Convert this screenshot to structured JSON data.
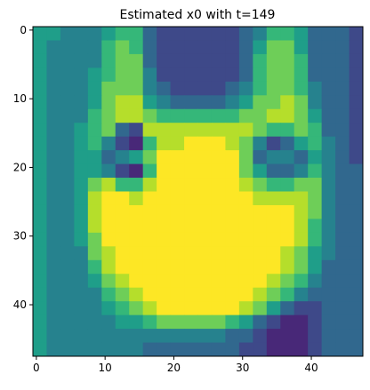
{
  "chart_data": {
    "type": "heatmap",
    "title": "Estimated x0 with t=149",
    "values": [
      [
        5,
        5,
        4,
        4,
        4,
        5,
        6,
        6,
        3,
        2,
        2,
        2,
        2,
        2,
        2,
        3,
        4,
        6,
        6,
        5,
        3,
        3,
        3,
        2
      ],
      [
        5,
        4,
        4,
        4,
        4,
        6,
        7,
        6,
        3,
        2,
        2,
        2,
        2,
        2,
        2,
        3,
        5,
        7,
        7,
        5,
        3,
        3,
        3,
        2
      ],
      [
        5,
        4,
        4,
        4,
        4,
        6,
        7,
        7,
        3,
        2,
        2,
        2,
        2,
        2,
        2,
        3,
        6,
        7,
        7,
        6,
        3,
        3,
        3,
        2
      ],
      [
        5,
        4,
        4,
        4,
        5,
        6,
        7,
        7,
        4,
        2,
        2,
        2,
        2,
        2,
        2,
        3,
        6,
        7,
        7,
        6,
        3,
        3,
        3,
        2
      ],
      [
        5,
        4,
        4,
        4,
        5,
        7,
        7,
        7,
        4,
        3,
        2,
        2,
        2,
        2,
        3,
        4,
        6,
        7,
        7,
        6,
        4,
        3,
        3,
        2
      ],
      [
        5,
        4,
        4,
        4,
        5,
        7,
        8,
        8,
        5,
        4,
        3,
        3,
        3,
        3,
        4,
        5,
        7,
        7,
        8,
        7,
        4,
        3,
        3,
        2
      ],
      [
        5,
        4,
        4,
        4,
        6,
        7,
        8,
        8,
        7,
        6,
        6,
        6,
        6,
        6,
        6,
        7,
        7,
        8,
        8,
        7,
        5,
        3,
        3,
        2
      ],
      [
        5,
        4,
        4,
        5,
        6,
        7,
        3,
        2,
        8,
        8,
        8,
        8,
        8,
        8,
        8,
        8,
        7,
        6,
        6,
        7,
        6,
        3,
        3,
        2
      ],
      [
        5,
        4,
        4,
        5,
        6,
        4,
        2,
        1,
        6,
        8,
        8,
        9,
        9,
        9,
        8,
        7,
        4,
        2,
        3,
        5,
        6,
        4,
        3,
        2
      ],
      [
        5,
        4,
        4,
        5,
        5,
        3,
        4,
        5,
        7,
        9,
        9,
        9,
        9,
        9,
        9,
        7,
        3,
        4,
        4,
        3,
        5,
        4,
        3,
        2
      ],
      [
        5,
        4,
        4,
        5,
        5,
        4,
        2,
        1,
        6,
        9,
        9,
        9,
        9,
        9,
        9,
        7,
        5,
        3,
        3,
        4,
        6,
        4,
        3,
        3
      ],
      [
        5,
        4,
        4,
        5,
        7,
        8,
        6,
        6,
        8,
        9,
        9,
        9,
        9,
        9,
        9,
        8,
        7,
        6,
        6,
        7,
        7,
        4,
        3,
        3
      ],
      [
        5,
        4,
        4,
        5,
        8,
        9,
        9,
        8,
        9,
        9,
        9,
        9,
        9,
        9,
        9,
        9,
        8,
        8,
        8,
        8,
        7,
        4,
        3,
        3
      ],
      [
        5,
        4,
        4,
        5,
        8,
        9,
        9,
        9,
        9,
        9,
        9,
        9,
        9,
        9,
        9,
        9,
        9,
        9,
        9,
        8,
        7,
        4,
        3,
        3
      ],
      [
        5,
        4,
        4,
        5,
        8,
        9,
        9,
        9,
        9,
        9,
        9,
        9,
        9,
        9,
        9,
        9,
        9,
        9,
        9,
        8,
        6,
        4,
        3,
        3
      ],
      [
        5,
        4,
        4,
        5,
        7,
        9,
        9,
        9,
        9,
        9,
        9,
        9,
        9,
        9,
        9,
        9,
        9,
        9,
        9,
        8,
        6,
        4,
        3,
        3
      ],
      [
        5,
        4,
        4,
        4,
        7,
        8,
        9,
        9,
        9,
        9,
        9,
        9,
        9,
        9,
        9,
        9,
        9,
        9,
        8,
        7,
        5,
        4,
        3,
        3
      ],
      [
        5,
        4,
        4,
        4,
        6,
        8,
        9,
        9,
        9,
        9,
        9,
        9,
        9,
        9,
        9,
        9,
        9,
        9,
        8,
        7,
        5,
        3,
        3,
        3
      ],
      [
        5,
        4,
        4,
        4,
        5,
        7,
        8,
        9,
        9,
        9,
        9,
        9,
        9,
        9,
        9,
        9,
        9,
        8,
        7,
        6,
        4,
        3,
        3,
        3
      ],
      [
        5,
        4,
        4,
        4,
        4,
        6,
        7,
        8,
        9,
        9,
        9,
        9,
        9,
        9,
        9,
        9,
        8,
        7,
        6,
        4,
        3,
        3,
        3,
        3
      ],
      [
        5,
        4,
        4,
        4,
        4,
        5,
        6,
        7,
        8,
        9,
        9,
        9,
        9,
        9,
        9,
        8,
        7,
        5,
        3,
        2,
        2,
        3,
        3,
        3
      ],
      [
        5,
        4,
        4,
        4,
        4,
        4,
        5,
        5,
        6,
        7,
        7,
        7,
        7,
        7,
        6,
        5,
        3,
        2,
        1,
        1,
        2,
        3,
        3,
        3
      ],
      [
        5,
        4,
        4,
        4,
        4,
        4,
        4,
        4,
        4,
        4,
        4,
        4,
        4,
        4,
        3,
        3,
        2,
        1,
        1,
        1,
        2,
        3,
        3,
        3
      ],
      [
        5,
        4,
        4,
        4,
        4,
        4,
        4,
        4,
        3,
        3,
        3,
        3,
        3,
        3,
        3,
        2,
        2,
        1,
        1,
        1,
        2,
        3,
        3,
        3
      ]
    ],
    "clim": [
      0,
      9
    ],
    "colors": [
      "#440154",
      "#482878",
      "#3e4989",
      "#31688e",
      "#26828e",
      "#1f9e89",
      "#35b779",
      "#6ece58",
      "#b5de2b",
      "#fde725"
    ],
    "xlim": [
      -0.5,
      47.5
    ],
    "ylim": [
      47.5,
      -0.5
    ],
    "xticks": [
      0,
      10,
      20,
      30,
      40
    ],
    "yticks": [
      0,
      10,
      20,
      30,
      40
    ]
  }
}
